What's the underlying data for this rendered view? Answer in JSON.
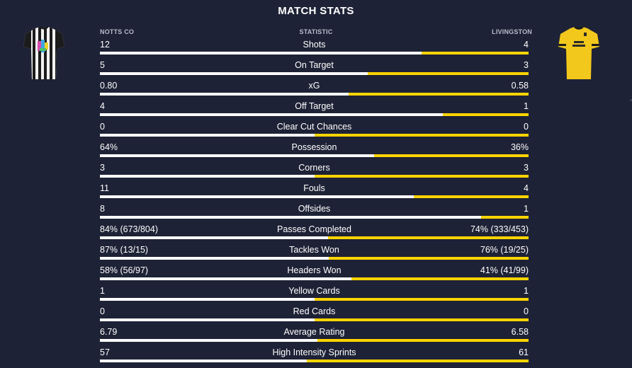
{
  "title": "MATCH STATS",
  "headers": {
    "home": "NOTTS CO",
    "statistic": "STATISTIC",
    "away": "LIVINGSTON"
  },
  "colors": {
    "background": "#1e2236",
    "home_bar": "#ffffff",
    "away_bar": "#ffd400"
  },
  "kits": {
    "home": {
      "icon": "notts-county-shirt-icon",
      "pattern": "black-white-stripes"
    },
    "away": {
      "icon": "livingston-shirt-icon",
      "pattern": "yellow-black-trim"
    }
  },
  "stats": [
    {
      "name": "Shots",
      "home": "12",
      "away": "4",
      "home_share": 0.75
    },
    {
      "name": "On Target",
      "home": "5",
      "away": "3",
      "home_share": 0.625
    },
    {
      "name": "xG",
      "home": "0.80",
      "away": "0.58",
      "home_share": 0.58
    },
    {
      "name": "Off Target",
      "home": "4",
      "away": "1",
      "home_share": 0.8
    },
    {
      "name": "Clear Cut Chances",
      "home": "0",
      "away": "0",
      "home_share": 0.5
    },
    {
      "name": "Possession",
      "home": "64%",
      "away": "36%",
      "home_share": 0.64
    },
    {
      "name": "Corners",
      "home": "3",
      "away": "3",
      "home_share": 0.5
    },
    {
      "name": "Fouls",
      "home": "11",
      "away": "4",
      "home_share": 0.733
    },
    {
      "name": "Offsides",
      "home": "8",
      "away": "1",
      "home_share": 0.889
    },
    {
      "name": "Passes Completed",
      "home": "84% (673/804)",
      "away": "74% (333/453)",
      "home_share": 0.532
    },
    {
      "name": "Tackles Won",
      "home": "87% (13/15)",
      "away": "76% (19/25)",
      "home_share": 0.534
    },
    {
      "name": "Headers Won",
      "home": "58% (56/97)",
      "away": "41% (41/99)",
      "home_share": 0.586
    },
    {
      "name": "Yellow Cards",
      "home": "1",
      "away": "1",
      "home_share": 0.5
    },
    {
      "name": "Red Cards",
      "home": "0",
      "away": "0",
      "home_share": 0.5
    },
    {
      "name": "Average Rating",
      "home": "6.79",
      "away": "6.58",
      "home_share": 0.508
    },
    {
      "name": "High Intensity Sprints",
      "home": "57",
      "away": "61",
      "home_share": 0.483
    }
  ]
}
